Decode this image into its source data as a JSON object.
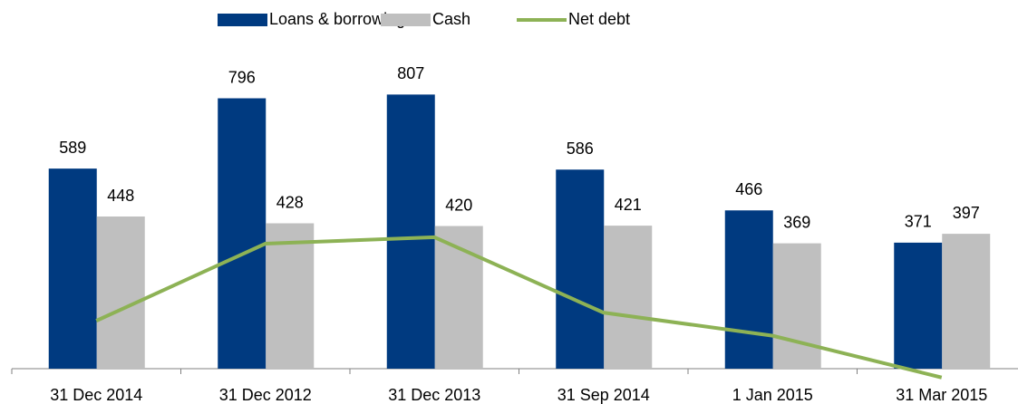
{
  "chart_data": {
    "type": "bar",
    "categories": [
      "31 Dec 2014",
      "31 Dec 2012",
      "31 Dec 2013",
      "31 Sep 2014",
      "1 Jan 2015",
      "31 Mar 2015"
    ],
    "series": [
      {
        "name": "Loans & borrowings",
        "color": "#003a80",
        "type": "bar",
        "values": [
          589,
          796,
          807,
          586,
          466,
          371
        ]
      },
      {
        "name": "Cash",
        "color": "#bfbfbf",
        "type": "bar",
        "values": [
          448,
          428,
          420,
          421,
          369,
          397
        ]
      },
      {
        "name": "Net debt",
        "color": "#8db255",
        "type": "line",
        "values": [
          141,
          368,
          387,
          165,
          97,
          -26
        ]
      }
    ],
    "ylim": [
      -80,
      1000
    ],
    "legend": "top"
  }
}
